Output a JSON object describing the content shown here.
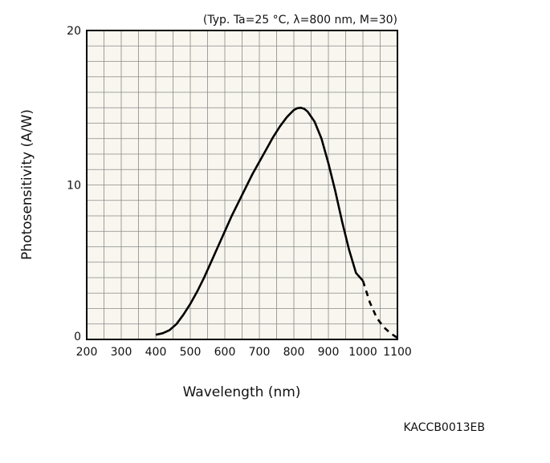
{
  "chart_data": {
    "type": "line",
    "title": "",
    "conditions_note": "(Typ. Ta=25 °C, λ=800 nm, M=30)",
    "xlabel": "Wavelength (nm)",
    "ylabel": "Photosensitivity (A/W)",
    "xlim": [
      200,
      1100
    ],
    "ylim": [
      0,
      20
    ],
    "x_ticks": [
      200,
      300,
      400,
      500,
      600,
      700,
      800,
      900,
      1000,
      1100
    ],
    "x_tick_labels": [
      "200",
      "300",
      "400",
      "500",
      "600",
      "700",
      "800",
      "900",
      "1000",
      "1100"
    ],
    "y_ticks": [
      0,
      10,
      20
    ],
    "y_tick_labels": [
      "0",
      "10",
      "20"
    ],
    "grid": true,
    "grid_x_step": 50,
    "grid_y_step": 1,
    "plot_background": "#f8f6ee",
    "line_color": "#000000",
    "series": [
      {
        "style": "solid",
        "x": [
          400,
          420,
          440,
          460,
          480,
          500,
          520,
          540,
          560,
          580,
          600,
          620,
          640,
          660,
          680,
          700,
          720,
          740,
          760,
          780,
          800,
          810,
          820,
          830,
          840,
          860,
          880,
          900,
          920,
          940,
          960,
          980,
          1000
        ],
        "y": [
          0.3,
          0.4,
          0.6,
          1.0,
          1.6,
          2.3,
          3.1,
          4.0,
          5.0,
          6.0,
          7.0,
          8.0,
          8.9,
          9.8,
          10.7,
          11.5,
          12.3,
          13.1,
          13.8,
          14.4,
          14.85,
          14.97,
          15.0,
          14.93,
          14.75,
          14.1,
          13.0,
          11.4,
          9.6,
          7.6,
          5.8,
          4.3,
          3.8
        ]
      },
      {
        "style": "dashed",
        "x": [
          1000,
          1020,
          1040,
          1060,
          1080,
          1100
        ],
        "y": [
          3.8,
          2.4,
          1.4,
          0.8,
          0.4,
          0.1
        ]
      }
    ],
    "figure_code": "KACCB0013EB"
  }
}
